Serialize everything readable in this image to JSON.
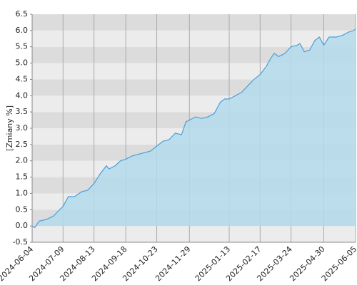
{
  "chart_data": {
    "type": "area",
    "y_label": "[Zmiany %]",
    "x": [
      "2024-06-04",
      "2024-06-07",
      "2024-06-12",
      "2024-06-20",
      "2024-06-28",
      "2024-07-05",
      "2024-07-09",
      "2024-07-15",
      "2024-07-22",
      "2024-07-30",
      "2024-08-06",
      "2024-08-13",
      "2024-08-20",
      "2024-08-27",
      "2024-08-30",
      "2024-09-06",
      "2024-09-12",
      "2024-09-18",
      "2024-09-25",
      "2024-10-02",
      "2024-10-09",
      "2024-10-16",
      "2024-10-23",
      "2024-10-30",
      "2024-11-06",
      "2024-11-13",
      "2024-11-20",
      "2024-11-25",
      "2024-11-29",
      "2024-12-06",
      "2024-12-13",
      "2024-12-20",
      "2024-12-27",
      "2025-01-03",
      "2025-01-08",
      "2025-01-13",
      "2025-01-20",
      "2025-01-27",
      "2025-02-03",
      "2025-02-10",
      "2025-02-17",
      "2025-02-24",
      "2025-03-01",
      "2025-03-05",
      "2025-03-10",
      "2025-03-17",
      "2025-03-24",
      "2025-03-31",
      "2025-04-03",
      "2025-04-08",
      "2025-04-14",
      "2025-04-20",
      "2025-04-25",
      "2025-04-30",
      "2025-05-06",
      "2025-05-14",
      "2025-05-21",
      "2025-05-28",
      "2025-06-03",
      "2025-06-05"
    ],
    "values": [
      0.0,
      -0.05,
      0.15,
      0.2,
      0.3,
      0.5,
      0.6,
      0.9,
      0.9,
      1.05,
      1.1,
      1.3,
      1.6,
      1.85,
      1.75,
      1.85,
      2.0,
      2.05,
      2.15,
      2.2,
      2.25,
      2.3,
      2.45,
      2.6,
      2.65,
      2.85,
      2.8,
      3.2,
      3.25,
      3.35,
      3.3,
      3.35,
      3.45,
      3.8,
      3.9,
      3.9,
      4.0,
      4.1,
      4.3,
      4.5,
      4.65,
      4.9,
      5.15,
      5.3,
      5.2,
      5.3,
      5.5,
      5.55,
      5.6,
      5.35,
      5.4,
      5.7,
      5.8,
      5.55,
      5.8,
      5.8,
      5.85,
      5.95,
      6.0,
      6.05
    ],
    "color": "#4a9fdc",
    "fill": "#b4dcec",
    "xlim": [
      "2024-06-04",
      "2025-06-05"
    ],
    "xticks": [
      "2024-06-04",
      "2024-07-09",
      "2024-08-13",
      "2024-09-18",
      "2024-10-23",
      "2024-11-29",
      "2025-01-13",
      "2025-02-17",
      "2025-03-24",
      "2025-04-30",
      "2025-06-05"
    ],
    "ylim": [
      -0.5,
      6.5
    ],
    "yticks": [
      -0.5,
      {
        "value": 0,
        "label": "0.0"
      },
      0.5,
      {
        "value": 1,
        "label": "1.0"
      },
      1.5,
      {
        "value": 2,
        "label": "2.0"
      },
      2.5,
      {
        "value": 3,
        "label": "3.0"
      },
      3.5,
      {
        "value": 4,
        "label": "4.0"
      },
      4.5,
      {
        "value": 5,
        "label": "5.0"
      },
      5.5,
      {
        "value": 6,
        "label": "6.0"
      },
      6.5
    ],
    "band_colors": [
      "#ececec",
      "#dcdcdc"
    ]
  }
}
